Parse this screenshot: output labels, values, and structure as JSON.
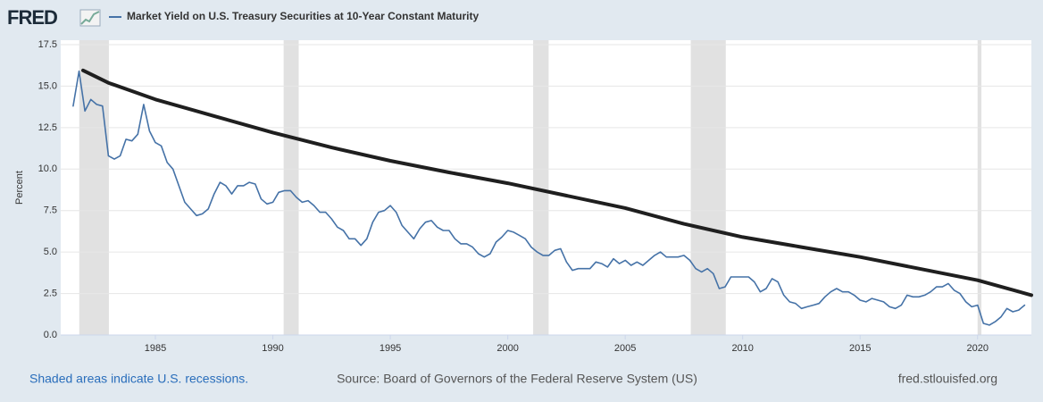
{
  "logo": "FRED",
  "chart_data": {
    "type": "line",
    "y_label": "Percent",
    "xlim": [
      1980.97,
      2022.29
    ],
    "xticks": [
      1985,
      1990,
      1995,
      2000,
      2005,
      2010,
      2015,
      2020
    ],
    "ylim": [
      0,
      17.5
    ],
    "yticks": [
      {
        "value": 0,
        "label": "0.0"
      },
      2.5,
      {
        "value": 5,
        "label": "5.0"
      },
      7.5,
      {
        "value": 10,
        "label": "10.0"
      },
      12.5,
      {
        "value": 15,
        "label": "15.0"
      },
      17.5
    ],
    "grid": true,
    "recession_color": "#e1e1e1",
    "recessions": [
      [
        1981.76,
        1983.02
      ],
      [
        1990.46,
        1991.1
      ],
      [
        2001.08,
        2001.74
      ],
      [
        2007.79,
        2009.28
      ],
      [
        2020.0,
        2020.16
      ]
    ],
    "series": [
      {
        "name": "Market Yield on U.S. Treasury Securities at 10-Year Constant Maturity",
        "color": "#4572a7",
        "width": 1.6,
        "x": [
          1981.5,
          1981.75,
          1982,
          1982.25,
          1982.5,
          1982.75,
          1983,
          1983.25,
          1983.5,
          1983.75,
          1984,
          1984.25,
          1984.5,
          1984.75,
          1985,
          1985.25,
          1985.5,
          1985.75,
          1986,
          1986.25,
          1986.5,
          1986.75,
          1987,
          1987.25,
          1987.5,
          1987.75,
          1988,
          1988.25,
          1988.5,
          1988.75,
          1989,
          1989.25,
          1989.5,
          1989.75,
          1990,
          1990.25,
          1990.5,
          1990.75,
          1991,
          1991.25,
          1991.5,
          1991.75,
          1992,
          1992.25,
          1992.5,
          1992.75,
          1993,
          1993.25,
          1993.5,
          1993.75,
          1994,
          1994.25,
          1994.5,
          1994.75,
          1995,
          1995.25,
          1995.5,
          1995.75,
          1996,
          1996.25,
          1996.5,
          1996.75,
          1997,
          1997.25,
          1997.5,
          1997.75,
          1998,
          1998.25,
          1998.5,
          1998.75,
          1999,
          1999.25,
          1999.5,
          1999.75,
          2000,
          2000.25,
          2000.5,
          2000.75,
          2001,
          2001.25,
          2001.5,
          2001.75,
          2002,
          2002.25,
          2002.5,
          2002.75,
          2003,
          2003.25,
          2003.5,
          2003.75,
          2004,
          2004.25,
          2004.5,
          2004.75,
          2005,
          2005.25,
          2005.5,
          2005.75,
          2006,
          2006.25,
          2006.5,
          2006.75,
          2007,
          2007.25,
          2007.5,
          2007.75,
          2008,
          2008.25,
          2008.5,
          2008.75,
          2009,
          2009.25,
          2009.5,
          2009.75,
          2010,
          2010.25,
          2010.5,
          2010.75,
          2011,
          2011.25,
          2011.5,
          2011.75,
          2012,
          2012.25,
          2012.5,
          2012.75,
          2013,
          2013.25,
          2013.5,
          2013.75,
          2014,
          2014.25,
          2014.5,
          2014.75,
          2015,
          2015.25,
          2015.5,
          2015.75,
          2016,
          2016.25,
          2016.5,
          2016.75,
          2017,
          2017.25,
          2017.5,
          2017.75,
          2018,
          2018.25,
          2018.5,
          2018.75,
          2019,
          2019.25,
          2019.5,
          2019.75,
          2020,
          2020.25,
          2020.5,
          2020.75,
          2021,
          2021.25,
          2021.5,
          2021.75,
          2022
        ],
        "values": [
          13.8,
          15.9,
          13.5,
          14.2,
          13.9,
          13.8,
          10.8,
          10.6,
          10.8,
          11.8,
          11.7,
          12.1,
          13.9,
          12.3,
          11.6,
          11.4,
          10.4,
          10.0,
          9.0,
          8.0,
          7.6,
          7.2,
          7.3,
          7.6,
          8.5,
          9.2,
          9.0,
          8.5,
          9.0,
          9.0,
          9.2,
          9.1,
          8.2,
          7.9,
          8.0,
          8.6,
          8.7,
          8.7,
          8.3,
          8.0,
          8.1,
          7.8,
          7.4,
          7.4,
          7.0,
          6.5,
          6.3,
          5.8,
          5.8,
          5.4,
          5.8,
          6.8,
          7.4,
          7.5,
          7.8,
          7.4,
          6.6,
          6.2,
          5.8,
          6.4,
          6.8,
          6.9,
          6.5,
          6.3,
          6.3,
          5.8,
          5.5,
          5.5,
          5.3,
          4.9,
          4.7,
          4.9,
          5.6,
          5.9,
          6.3,
          6.2,
          6.0,
          5.8,
          5.3,
          5.0,
          4.8,
          4.8,
          5.1,
          5.2,
          4.4,
          3.9,
          4.0,
          4.0,
          4.0,
          4.4,
          4.3,
          4.1,
          4.6,
          4.3,
          4.5,
          4.2,
          4.4,
          4.2,
          4.5,
          4.8,
          5.0,
          4.7,
          4.7,
          4.7,
          4.8,
          4.5,
          4.0,
          3.8,
          4.0,
          3.7,
          2.8,
          2.9,
          3.5,
          3.5,
          3.5,
          3.5,
          3.2,
          2.6,
          2.8,
          3.4,
          3.2,
          2.4,
          2.0,
          1.9,
          1.6,
          1.7,
          1.8,
          1.9,
          2.3,
          2.6,
          2.8,
          2.6,
          2.6,
          2.4,
          2.1,
          2.0,
          2.2,
          2.1,
          2.0,
          1.7,
          1.6,
          1.8,
          2.4,
          2.3,
          2.3,
          2.4,
          2.6,
          2.9,
          2.9,
          3.1,
          2.7,
          2.5,
          2.0,
          1.7,
          1.8,
          0.7,
          0.6,
          0.8,
          1.1,
          1.6,
          1.4,
          1.5,
          1.8
        ]
      },
      {
        "color": "#1f1f1f",
        "width": 4,
        "x": [
          1981.92,
          1983,
          1985,
          1987.5,
          1990,
          1992.5,
          1995,
          1997.5,
          2000,
          2002.5,
          2005,
          2007.5,
          2010,
          2012.5,
          2015,
          2017.5,
          2020,
          2022.29
        ],
        "values": [
          15.95,
          15.2,
          14.2,
          13.2,
          12.2,
          11.3,
          10.5,
          9.8,
          9.15,
          8.4,
          7.65,
          6.7,
          5.9,
          5.3,
          4.7,
          4.0,
          3.3,
          2.4
        ]
      }
    ],
    "footer_left": "Shaded areas indicate U.S. recessions.",
    "source": "Source: Board of Governors of the Federal Reserve System (US)",
    "footer_right": "fred.stlouisfed.org"
  }
}
